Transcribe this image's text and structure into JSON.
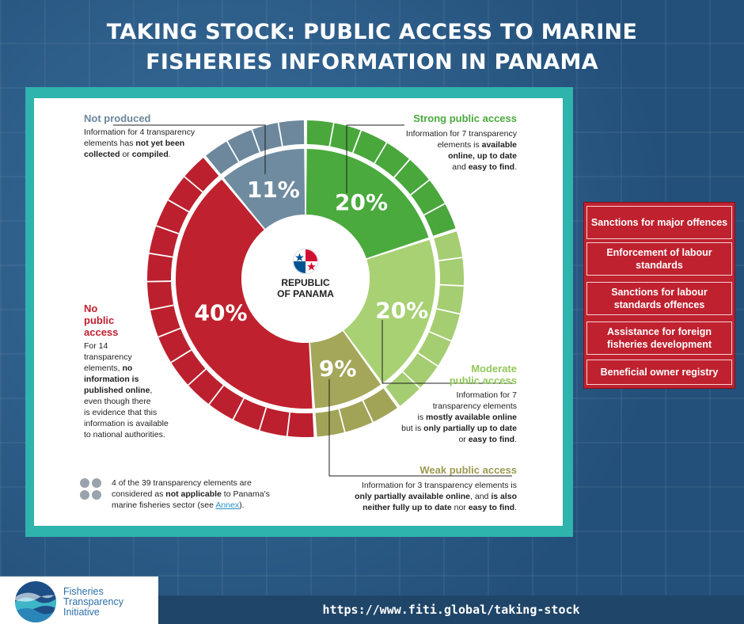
{
  "title_line1": "TAKING STOCK: PUBLIC ACCESS TO MARINE",
  "title_line2": "FISHERIES INFORMATION IN PANAMA",
  "center_label_line1": "REPUBLIC",
  "center_label_line2": "OF PANAMA",
  "chart_data": {
    "type": "pie",
    "title": "TAKING STOCK: PUBLIC ACCESS TO MARINE FISHERIES INFORMATION IN PANAMA",
    "total_elements": 39,
    "slices": [
      {
        "name": "Strong public access",
        "percent": 20,
        "label": "20%",
        "elements": 7,
        "color": "#4aaa3d"
      },
      {
        "name": "Moderate public access",
        "percent": 20,
        "label": "20%",
        "elements": 7,
        "color": "#a8d173"
      },
      {
        "name": "Weak public access",
        "percent": 9,
        "label": "9%",
        "elements": 3,
        "color": "#a4a659"
      },
      {
        "name": "No public access",
        "percent": 40,
        "label": "40%",
        "elements": 14,
        "color": "#c0212f"
      },
      {
        "name": "Not produced",
        "percent": 11,
        "label": "11%",
        "elements": 4,
        "color": "#6f8ba0"
      }
    ],
    "not_applicable": 4
  },
  "annotations": {
    "not_produced": {
      "heading": "Not produced",
      "l1": "Information for 4 transparency",
      "l2a": "elements has ",
      "l2b": "not yet been",
      "l3a": "collected",
      "l3b": " or ",
      "l3c": "compiled",
      "l3d": "."
    },
    "strong": {
      "heading": "Strong public access",
      "l1": "Information for 7 transparency",
      "l2a": "elements is ",
      "l2b": "available",
      "l3": "online, up to date",
      "l4a": "and ",
      "l4b": "easy to find",
      "l4c": "."
    },
    "moderate": {
      "heading1": "Moderate",
      "heading2": "public access",
      "l1": "Information for 7",
      "l2": "transparency elements",
      "l3a": "is ",
      "l3b": "mostly available online",
      "l4a": "but is ",
      "l4b": "only partially up to date",
      "l5a": "or ",
      "l5b": "easy to find",
      "l5c": "."
    },
    "weak": {
      "heading": "Weak public access",
      "l1": "Information for 3 transparency elements is",
      "l2a": "only partially available online",
      "l2b": ", and ",
      "l2c": "is also",
      "l3a": "neither fully up to date",
      "l3b": " nor ",
      "l3c": "easy to find",
      "l3d": "."
    },
    "no_access": {
      "heading1": "No",
      "heading2": "public",
      "heading3": "access",
      "l1": "For 14",
      "l2": "transparency",
      "l3a": "elements, ",
      "l3b": "no",
      "l4": "information is",
      "l5": "published online",
      "l5b": ",",
      "l6": "even though there",
      "l7": "is evidence that this",
      "l8": "information is available",
      "l9": "to national authorities."
    },
    "not_applicable": {
      "l1": "4 of the 39 transparency elements are",
      "l2a": "considered as ",
      "l2b": "not applicable",
      "l2c": " to Panama's",
      "l3a": "marine fisheries sector (see ",
      "l3b": "Annex",
      "l3c": ")."
    }
  },
  "legend_items": [
    "Sanctions for major offences",
    "Enforcement of labour standards",
    "Sanctions for labour standards offences",
    "Assistance for foreign fisheries development",
    "Beneficial owner registry"
  ],
  "logo": {
    "line1": "Fisheries",
    "line2": "Transparency",
    "line3": "Initiative"
  },
  "footer_url": "https://www.fiti.global/taking-stock",
  "colors": {
    "background": "#2c5a86",
    "frame": "#2fb3ad",
    "red": "#c0212f",
    "green": "#4aaa3d",
    "light_green": "#a8d173",
    "olive": "#a4a659",
    "grey": "#6f8ba0"
  }
}
